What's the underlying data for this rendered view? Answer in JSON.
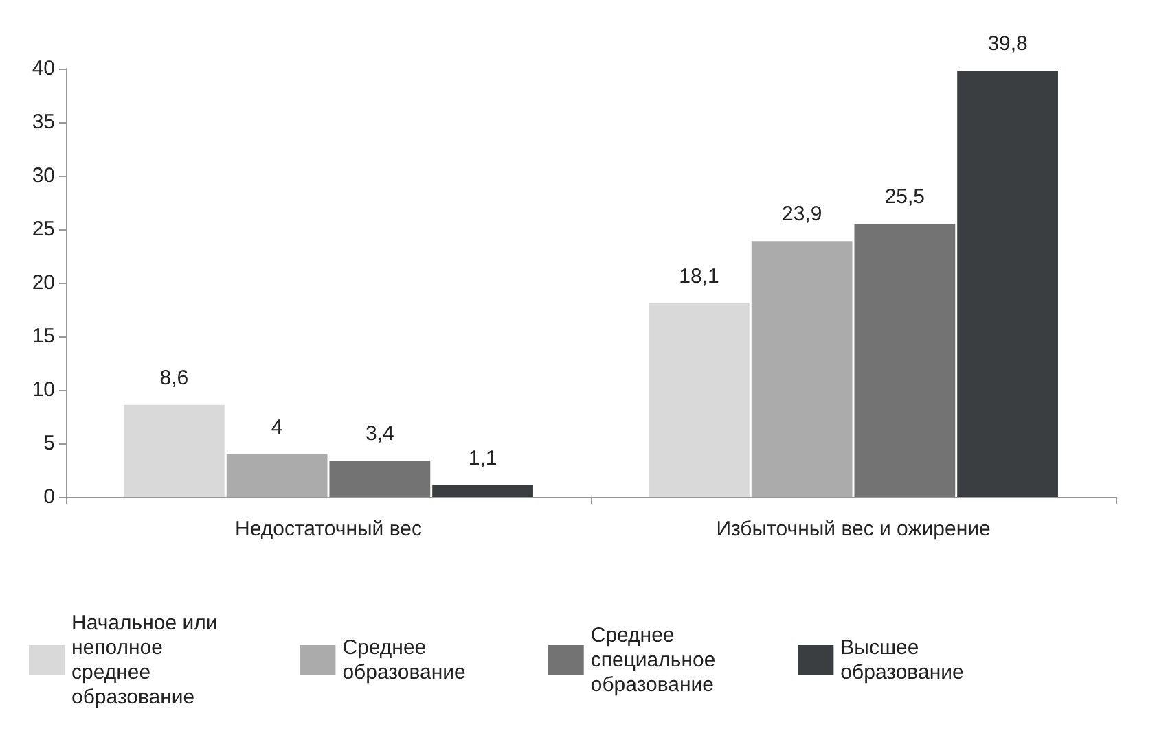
{
  "chart_data": {
    "type": "bar",
    "categories": [
      "Недостаточный вес",
      "Избыточный вес и ожирение"
    ],
    "series": [
      {
        "name": "Начальное или неполное среднее образование",
        "color": "#d9d9d9",
        "values": [
          8.6,
          18.1
        ],
        "value_labels": [
          "8,6",
          "18,1"
        ]
      },
      {
        "name": "Среднее образование",
        "color": "#ababab",
        "values": [
          4,
          23.9
        ],
        "value_labels": [
          "4",
          "23,9"
        ]
      },
      {
        "name": "Среднее специальное образование",
        "color": "#737373",
        "values": [
          3.4,
          25.5
        ],
        "value_labels": [
          "3,4",
          "25,5"
        ]
      },
      {
        "name": "Высшее образование",
        "color": "#3b3e40",
        "values": [
          1.1,
          39.8
        ],
        "value_labels": [
          "1,1",
          "39,8"
        ]
      }
    ],
    "ylim": [
      0,
      40
    ],
    "yticks": [
      0,
      5,
      10,
      15,
      20,
      25,
      30,
      35,
      40
    ],
    "grid": false,
    "legend": "bottom"
  }
}
